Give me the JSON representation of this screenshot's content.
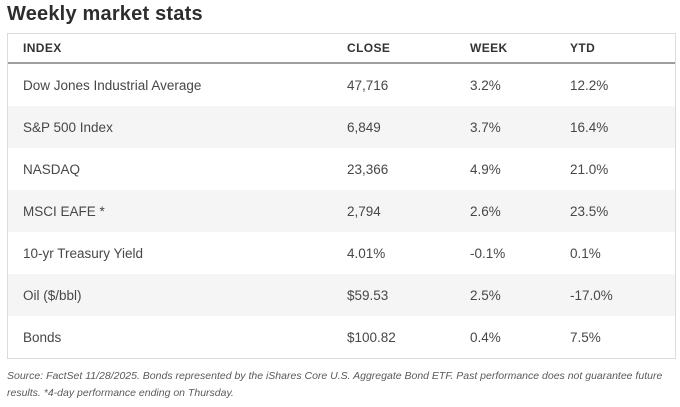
{
  "page": {
    "title": "Weekly market stats"
  },
  "chart_data": {
    "type": "table",
    "title": "Weekly market stats",
    "columns": [
      "INDEX",
      "CLOSE",
      "WEEK",
      "YTD"
    ],
    "rows": [
      {
        "index": "Dow Jones Industrial Average",
        "close": "47,716",
        "week": "3.2%",
        "ytd": "12.2%"
      },
      {
        "index": "S&P 500 Index",
        "close": "6,849",
        "week": "3.7%",
        "ytd": "16.4%"
      },
      {
        "index": "NASDAQ",
        "close": "23,366",
        "week": "4.9%",
        "ytd": "21.0%"
      },
      {
        "index": "MSCI EAFE *",
        "close": "2,794",
        "week": "2.6%",
        "ytd": "23.5%"
      },
      {
        "index": "10-yr Treasury Yield",
        "close": "4.01%",
        "week": "-0.1%",
        "ytd": "0.1%"
      },
      {
        "index": "Oil ($/bbl)",
        "close": "$59.53",
        "week": "2.5%",
        "ytd": "-17.0%"
      },
      {
        "index": "Bonds",
        "close": "$100.82",
        "week": "0.4%",
        "ytd": "7.5%"
      }
    ],
    "footnote": "Source: FactSet 11/28/2025. Bonds represented by the iShares Core U.S. Aggregate Bond ETF. Past performance does not guarantee future results. *4-day performance ending on Thursday.",
    "layout": {
      "zebra_striping": true,
      "column_alignment": "left"
    }
  },
  "colors": {
    "title_text": "#2d2d2d",
    "header_text": "#333333",
    "cell_text": "#474747",
    "zebra_stripe": "#f5f5f5",
    "table_border": "#dcdcdc",
    "header_underline": "#9e9e9e",
    "footnote_text": "#5a5a5a"
  }
}
